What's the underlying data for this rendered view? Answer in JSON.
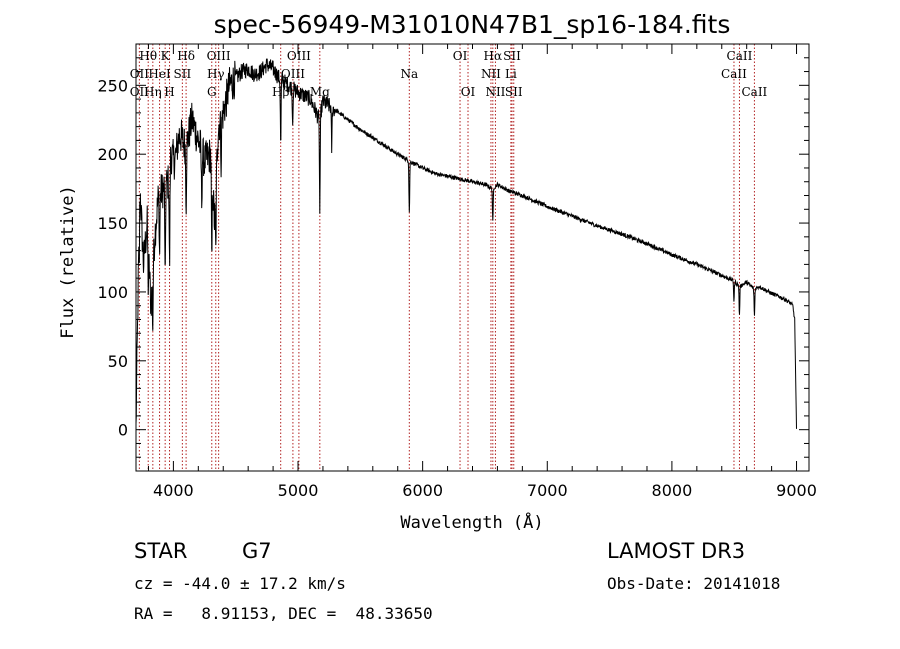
{
  "chart_data": {
    "type": "line",
    "title": "spec-56949-M31010N47B1_sp16-184.fits",
    "xlabel": "Wavelength (Å)",
    "ylabel": "Flux (relative)",
    "xlim": [
      3700,
      9100
    ],
    "ylim": [
      -30,
      280
    ],
    "xticks": [
      4000,
      5000,
      6000,
      7000,
      8000,
      9000
    ],
    "yticks": [
      0,
      50,
      100,
      150,
      200,
      250
    ],
    "line_color": "#000000",
    "marker_color": "#b22222",
    "spectrum_anchors": {
      "x": [
        3700,
        3710,
        3730,
        3760,
        3790,
        3820,
        3850,
        3880,
        3920,
        3960,
        3980,
        4010,
        4050,
        4100,
        4150,
        4200,
        4250,
        4300,
        4330,
        4360,
        4400,
        4450,
        4500,
        4550,
        4600,
        4650,
        4700,
        4750,
        4800,
        4850,
        4900,
        4950,
        5000,
        5100,
        5170,
        5200,
        5300,
        5400,
        5500,
        5600,
        5700,
        5800,
        5893,
        6000,
        6100,
        6200,
        6300,
        6400,
        6500,
        6563,
        6600,
        6700,
        6800,
        7000,
        7200,
        7400,
        7600,
        7800,
        8000,
        8200,
        8400,
        8498,
        8542,
        8600,
        8662,
        8700,
        8800,
        8900,
        8950,
        8970,
        8985,
        9000
      ],
      "y": [
        0,
        60,
        180,
        120,
        150,
        90,
        140,
        170,
        175,
        180,
        200,
        195,
        215,
        205,
        225,
        210,
        195,
        200,
        150,
        220,
        230,
        250,
        255,
        260,
        262,
        258,
        260,
        265,
        262,
        255,
        252,
        248,
        245,
        240,
        225,
        238,
        232,
        225,
        218,
        212,
        206,
        200,
        195,
        190,
        186,
        184,
        182,
        180,
        178,
        175,
        178,
        173,
        170,
        162,
        155,
        148,
        142,
        135,
        127,
        120,
        112,
        108,
        104,
        107,
        102,
        104,
        99,
        95,
        92,
        90,
        80,
        0
      ]
    },
    "absorption_lines": [
      {
        "wavelength": 3727,
        "depth": 40
      },
      {
        "wavelength": 3798,
        "depth": 30
      },
      {
        "wavelength": 3835,
        "depth": 40
      },
      {
        "wavelength": 3889,
        "depth": 45
      },
      {
        "wavelength": 3934,
        "depth": 75
      },
      {
        "wavelength": 3969,
        "depth": 70
      },
      {
        "wavelength": 4102,
        "depth": 40
      },
      {
        "wavelength": 4227,
        "depth": 35
      },
      {
        "wavelength": 4308,
        "depth": 70
      },
      {
        "wavelength": 4340,
        "depth": 45
      },
      {
        "wavelength": 4383,
        "depth": 30
      },
      {
        "wavelength": 4861,
        "depth": 50
      },
      {
        "wavelength": 4957,
        "depth": 25
      },
      {
        "wavelength": 5175,
        "depth": 70
      },
      {
        "wavelength": 5270,
        "depth": 30
      },
      {
        "wavelength": 5893,
        "depth": 38
      },
      {
        "wavelength": 6563,
        "depth": 25
      },
      {
        "wavelength": 8498,
        "depth": 15
      },
      {
        "wavelength": 8542,
        "depth": 22
      },
      {
        "wavelength": 8662,
        "depth": 20
      }
    ],
    "line_markers": [
      {
        "label": "Hθ",
        "wavelength": 3798,
        "row": 1
      },
      {
        "label": "OII",
        "wavelength": 3727,
        "row": 2
      },
      {
        "label": "OII",
        "wavelength": 3727,
        "row": 3
      },
      {
        "label": "K",
        "wavelength": 3934,
        "row": 1
      },
      {
        "label": "HeI",
        "wavelength": 3889,
        "row": 2
      },
      {
        "label": "Hη",
        "wavelength": 3835,
        "row": 3
      },
      {
        "label": "Hδ",
        "wavelength": 4102,
        "row": 1
      },
      {
        "label": "SII",
        "wavelength": 4072,
        "row": 2
      },
      {
        "label": "H",
        "wavelength": 3969,
        "row": 3
      },
      {
        "label": "OIII",
        "wavelength": 4363,
        "row": 1
      },
      {
        "label": "Hγ",
        "wavelength": 4340,
        "row": 2
      },
      {
        "label": "G",
        "wavelength": 4308,
        "row": 3
      },
      {
        "label": "OIII",
        "wavelength": 5007,
        "row": 1
      },
      {
        "label": "OIII",
        "wavelength": 4959,
        "row": 2
      },
      {
        "label": "Hβ",
        "wavelength": 4861,
        "row": 3
      },
      {
        "label": "Mg",
        "wavelength": 5175,
        "row": 3
      },
      {
        "label": "Na",
        "wavelength": 5893,
        "row": 2
      },
      {
        "label": "OI",
        "wavelength": 6300,
        "row": 1
      },
      {
        "label": "OI",
        "wavelength": 6364,
        "row": 3
      },
      {
        "label": "Hα",
        "wavelength": 6563,
        "row": 1
      },
      {
        "label": "NII",
        "wavelength": 6548,
        "row": 2
      },
      {
        "label": "NII",
        "wavelength": 6584,
        "row": 3
      },
      {
        "label": "SII",
        "wavelength": 6717,
        "row": 1
      },
      {
        "label": "Li",
        "wavelength": 6708,
        "row": 2
      },
      {
        "label": "SII",
        "wavelength": 6731,
        "row": 3
      },
      {
        "label": "CaII",
        "wavelength": 8542,
        "row": 1
      },
      {
        "label": "CaII",
        "wavelength": 8498,
        "row": 2
      },
      {
        "label": "CaII",
        "wavelength": 8662,
        "row": 3
      }
    ]
  },
  "info": {
    "class": "STAR",
    "subclass": "G7",
    "survey": "LAMOST DR3",
    "cz": "cz = -44.0 ± 17.2 km/s",
    "obs_date": "Obs-Date: 20141018",
    "coords": "RA =   8.91153, DEC =  48.33650"
  }
}
